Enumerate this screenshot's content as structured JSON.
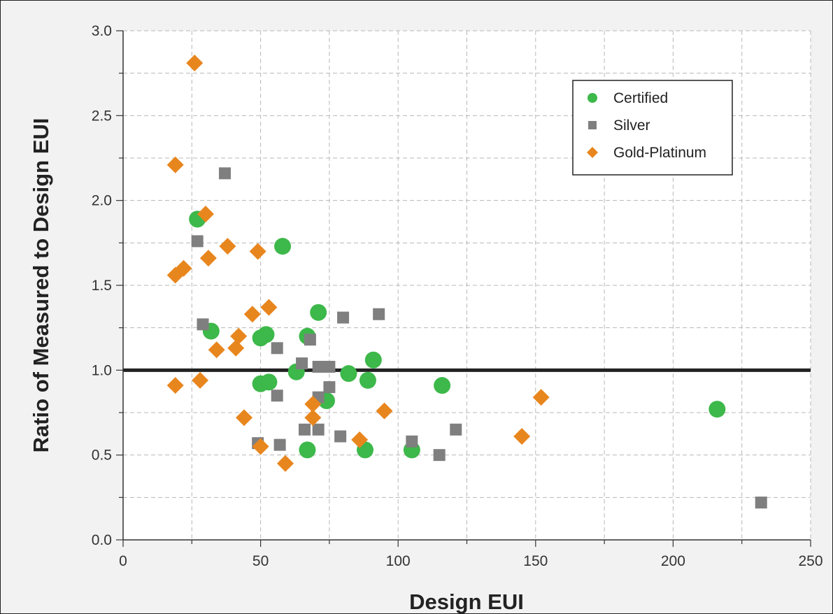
{
  "chart_data": {
    "type": "scatter",
    "title": "",
    "xlabel": "Design EUI",
    "ylabel": "Ratio of Measured to Design EUI",
    "xlim": [
      0,
      250
    ],
    "ylim": [
      0.0,
      3.0
    ],
    "x_ticks": [
      0,
      50,
      100,
      150,
      200,
      250
    ],
    "y_ticks": [
      0.0,
      0.5,
      1.0,
      1.5,
      2.0,
      2.5,
      3.0
    ],
    "x_tick_labels": [
      "0",
      "50",
      "100",
      "150",
      "200",
      "250"
    ],
    "y_tick_labels": [
      "0.0",
      "0.5",
      "1.0",
      "1.5",
      "2.0",
      "2.5",
      "3.0"
    ],
    "grid": true,
    "legend_position": "top-right",
    "reference_line": {
      "y": 1.0,
      "color": "#222222"
    },
    "series": [
      {
        "name": "Certified",
        "marker": "circle",
        "color": "#3db84a",
        "points": [
          [
            27,
            1.89
          ],
          [
            32,
            1.23
          ],
          [
            58,
            1.73
          ],
          [
            71,
            1.34
          ],
          [
            67,
            1.2
          ],
          [
            50,
            1.19
          ],
          [
            52,
            1.21
          ],
          [
            63,
            0.99
          ],
          [
            50,
            0.92
          ],
          [
            53,
            0.93
          ],
          [
            82,
            0.98
          ],
          [
            89,
            0.94
          ],
          [
            91,
            1.06
          ],
          [
            74,
            0.82
          ],
          [
            116,
            0.91
          ],
          [
            67,
            0.53
          ],
          [
            88,
            0.53
          ],
          [
            105,
            0.53
          ],
          [
            216,
            0.77
          ]
        ]
      },
      {
        "name": "Silver",
        "marker": "square",
        "color": "#7f7f7f",
        "points": [
          [
            37,
            2.16
          ],
          [
            27,
            1.76
          ],
          [
            29,
            1.27
          ],
          [
            56,
            1.13
          ],
          [
            68,
            1.18
          ],
          [
            80,
            1.31
          ],
          [
            93,
            1.33
          ],
          [
            65,
            1.04
          ],
          [
            71,
            1.02
          ],
          [
            75,
            1.02
          ],
          [
            75,
            0.9
          ],
          [
            56,
            0.85
          ],
          [
            71,
            0.84
          ],
          [
            66,
            0.65
          ],
          [
            71,
            0.65
          ],
          [
            79,
            0.61
          ],
          [
            49,
            0.57
          ],
          [
            57,
            0.56
          ],
          [
            105,
            0.58
          ],
          [
            115,
            0.5
          ],
          [
            121,
            0.65
          ],
          [
            232,
            0.22
          ]
        ]
      },
      {
        "name": "Gold-Platinum",
        "marker": "diamond",
        "color": "#e8861e",
        "points": [
          [
            26,
            2.81
          ],
          [
            19,
            2.21
          ],
          [
            30,
            1.92
          ],
          [
            38,
            1.73
          ],
          [
            49,
            1.7
          ],
          [
            31,
            1.66
          ],
          [
            22,
            1.6
          ],
          [
            19,
            1.56
          ],
          [
            47,
            1.33
          ],
          [
            53,
            1.37
          ],
          [
            42,
            1.2
          ],
          [
            41,
            1.13
          ],
          [
            34,
            1.12
          ],
          [
            19,
            0.91
          ],
          [
            28,
            0.94
          ],
          [
            69,
            0.8
          ],
          [
            69,
            0.72
          ],
          [
            44,
            0.72
          ],
          [
            95,
            0.76
          ],
          [
            86,
            0.59
          ],
          [
            50,
            0.55
          ],
          [
            59,
            0.45
          ],
          [
            145,
            0.61
          ],
          [
            152,
            0.84
          ]
        ]
      }
    ]
  }
}
